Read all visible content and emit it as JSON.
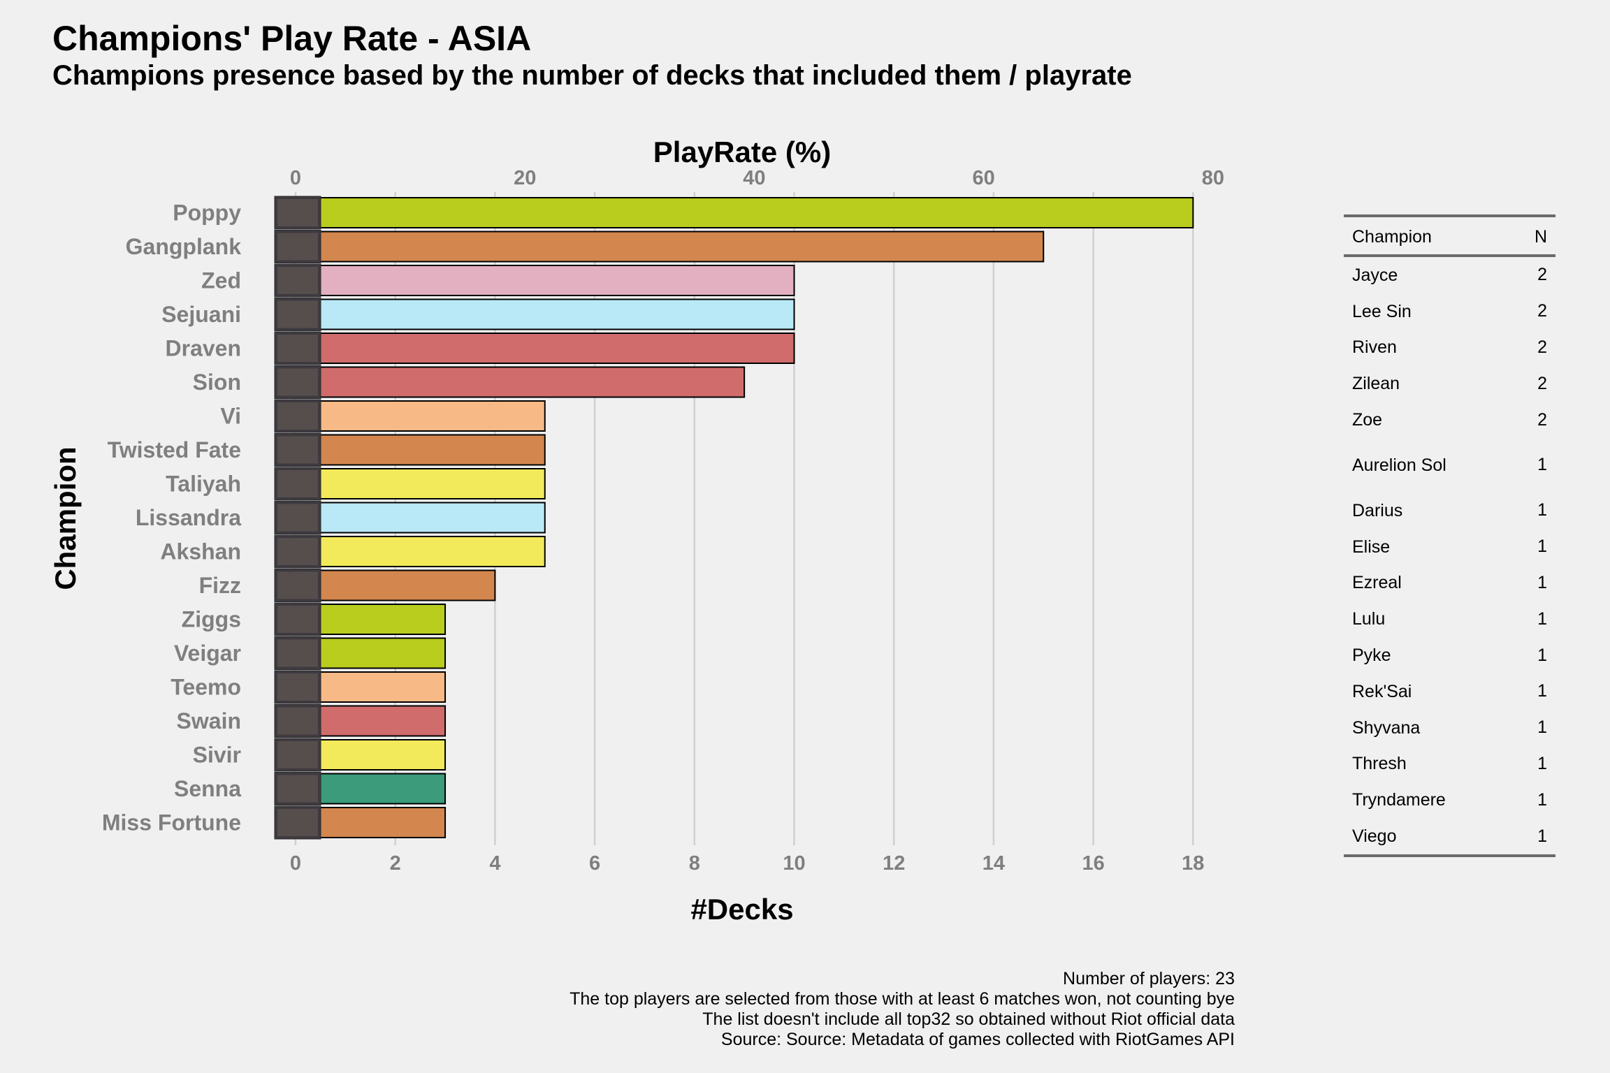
{
  "title": "Champions' Play Rate - ASIA",
  "subtitle": "Champions presence based by the number of decks that included them / playrate",
  "chart_data": {
    "type": "bar",
    "orientation": "horizontal",
    "xlabel": "#Decks",
    "ylabel": "Champion",
    "secondary_xlabel": "PlayRate (%)",
    "xlim": [
      0,
      18
    ],
    "x_ticks": [
      0,
      2,
      4,
      6,
      8,
      10,
      12,
      14,
      16,
      18
    ],
    "secondary_x_ticks": [
      0,
      20,
      40,
      60,
      80
    ],
    "grid": "vertical",
    "categories": [
      "Poppy",
      "Gangplank",
      "Zed",
      "Sejuani",
      "Draven",
      "Sion",
      "Vi",
      "Twisted Fate",
      "Taliyah",
      "Lissandra",
      "Akshan",
      "Fizz",
      "Ziggs",
      "Veigar",
      "Teemo",
      "Swain",
      "Sivir",
      "Senna",
      "Miss Fortune"
    ],
    "values": [
      18,
      15,
      10,
      10,
      10,
      9,
      5,
      5,
      5,
      5,
      5,
      4,
      3,
      3,
      3,
      3,
      3,
      3,
      3
    ],
    "colors": [
      "#b8cd1e",
      "#d3874e",
      "#e2b0c0",
      "#b9e9f6",
      "#d06c6c",
      "#d06c6c",
      "#f7b985",
      "#d3874e",
      "#f2ea5a",
      "#b9e9f6",
      "#f2ea5a",
      "#d3874e",
      "#b8cd1e",
      "#b8cd1e",
      "#f7b985",
      "#d06c6c",
      "#f2ea5a",
      "#3b9b7b",
      "#d3874e"
    ]
  },
  "side_table": {
    "headers": [
      "Champion",
      "N"
    ],
    "rows": [
      {
        "name": "Jayce",
        "n": "2"
      },
      {
        "name": "Lee Sin",
        "n": "2"
      },
      {
        "name": "Riven",
        "n": "2"
      },
      {
        "name": "Zilean",
        "n": "2"
      },
      {
        "name": "Zoe",
        "n": "2"
      },
      {
        "name": "Aurelion Sol",
        "n": "1"
      },
      {
        "name": "Darius",
        "n": "1"
      },
      {
        "name": "Elise",
        "n": "1"
      },
      {
        "name": "Ezreal",
        "n": "1"
      },
      {
        "name": "Lulu",
        "n": "1"
      },
      {
        "name": "Pyke",
        "n": "1"
      },
      {
        "name": "Rek'Sai",
        "n": "1"
      },
      {
        "name": "Shyvana",
        "n": "1"
      },
      {
        "name": "Thresh",
        "n": "1"
      },
      {
        "name": "Tryndamere",
        "n": "1"
      },
      {
        "name": "Viego",
        "n": "1"
      }
    ]
  },
  "footnotes": [
    "Number of players: 23",
    "The top players are selected from those with at least 6 matches won, not counting bye",
    "The list doesn't include all top32 so obtained without Riot official data",
    "Source: Source: Metadata of games collected with RiotGames API"
  ]
}
